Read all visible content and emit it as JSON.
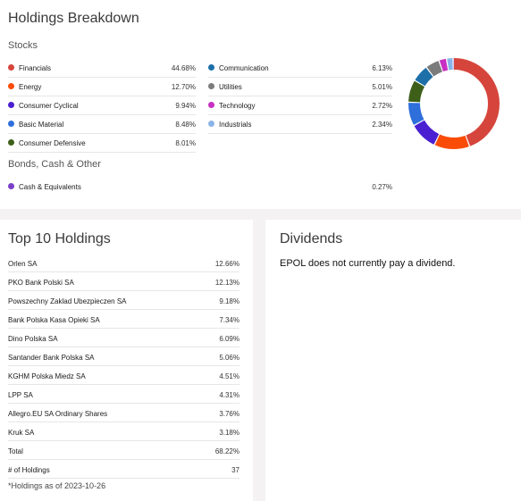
{
  "breakdown": {
    "title": "Holdings Breakdown",
    "stocks_label": "Stocks",
    "bonds_label": "Bonds, Cash & Other",
    "stocks_left": [
      {
        "name": "Financials",
        "value": "44.68%",
        "color": "#d6453b"
      },
      {
        "name": "Energy",
        "value": "12.70%",
        "color": "#fa4c06"
      },
      {
        "name": "Consumer Cyclical",
        "value": "9.94%",
        "color": "#4a1fd1"
      },
      {
        "name": "Basic Material",
        "value": "8.48%",
        "color": "#2f6fdb"
      },
      {
        "name": "Consumer Defensive",
        "value": "8.01%",
        "color": "#3d5f18"
      }
    ],
    "stocks_right": [
      {
        "name": "Communication",
        "value": "6.13%",
        "color": "#1d6fa8"
      },
      {
        "name": "Utilities",
        "value": "5.01%",
        "color": "#7b7b7b"
      },
      {
        "name": "Technology",
        "value": "2.72%",
        "color": "#c82fc3"
      },
      {
        "name": "Industrials",
        "value": "2.34%",
        "color": "#8ab4e8"
      }
    ],
    "other": [
      {
        "name": "Cash & Equivalents",
        "value": "0.27%",
        "color": "#7a3fc9"
      }
    ]
  },
  "top10": {
    "title": "Top 10 Holdings",
    "rows": [
      {
        "name": "Orlen SA",
        "value": "12.66%"
      },
      {
        "name": "PKO Bank Polski SA",
        "value": "12.13%"
      },
      {
        "name": "Powszechny Zaklad Ubezpieczen SA",
        "value": "9.18%"
      },
      {
        "name": "Bank Polska Kasa Opieki SA",
        "value": "7.34%"
      },
      {
        "name": "Dino Polska SA",
        "value": "6.09%"
      },
      {
        "name": "Santander Bank Polska SA",
        "value": "5.06%"
      },
      {
        "name": "KGHM Polska Miedz SA",
        "value": "4.51%"
      },
      {
        "name": "LPP SA",
        "value": "4.31%"
      },
      {
        "name": "Allegro.EU SA Ordinary Shares",
        "value": "3.76%"
      },
      {
        "name": "Kruk SA",
        "value": "3.18%"
      }
    ],
    "total_label": "Total",
    "total_value": "68.22%",
    "count_label": "# of Holdings",
    "count_value": "37",
    "footnote": "*Holdings as of 2023-10-26"
  },
  "dividends": {
    "title": "Dividends",
    "text": "EPOL does not currently pay a dividend."
  },
  "chart_data": {
    "type": "pie",
    "labels": [
      "Financials",
      "Energy",
      "Consumer Cyclical",
      "Basic Material",
      "Consumer Defensive",
      "Communication",
      "Utilities",
      "Technology",
      "Industrials",
      "Cash & Equivalents"
    ],
    "values": [
      44.68,
      12.7,
      9.94,
      8.48,
      8.01,
      6.13,
      5.01,
      2.72,
      2.34,
      0.27
    ],
    "colors": [
      "#d6453b",
      "#fa4c06",
      "#4a1fd1",
      "#2f6fdb",
      "#3d5f18",
      "#1d6fa8",
      "#7b7b7b",
      "#c82fc3",
      "#8ab4e8",
      "#7a3fc9"
    ]
  }
}
